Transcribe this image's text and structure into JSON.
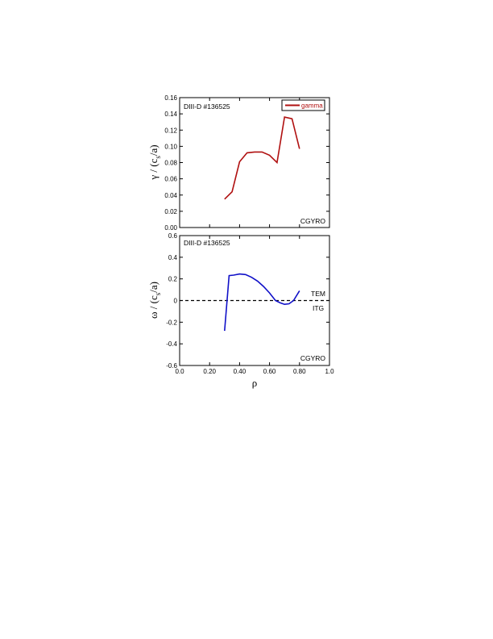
{
  "chart_data": [
    {
      "type": "line",
      "title": "",
      "xlabel": "",
      "ylabel_main": "γ / (c",
      "ylabel_sub": "s",
      "ylabel_tail": "/a)",
      "xlim": [
        0.0,
        1.0
      ],
      "ylim": [
        0.0,
        0.16
      ],
      "yticks": [
        "0.00",
        "0.02",
        "0.04",
        "0.06",
        "0.08",
        "0.10",
        "0.12",
        "0.14",
        "0.16"
      ],
      "ytick_values": [
        0.0,
        0.02,
        0.04,
        0.06,
        0.08,
        0.1,
        0.12,
        0.14,
        0.16
      ],
      "xtick_values": [
        0.0,
        0.2,
        0.4,
        0.6,
        0.8,
        1.0
      ],
      "annotations": {
        "top_left": "DIII-D #136525",
        "bottom_right": "CGYRO"
      },
      "legend": {
        "position": "top-right",
        "entries": [
          "gamma"
        ]
      },
      "series": [
        {
          "name": "gamma",
          "color": "#b01010",
          "x": [
            0.3,
            0.35,
            0.4,
            0.45,
            0.5,
            0.55,
            0.6,
            0.65,
            0.7,
            0.75,
            0.8
          ],
          "y": [
            0.035,
            0.044,
            0.081,
            0.092,
            0.093,
            0.093,
            0.089,
            0.08,
            0.136,
            0.134,
            0.097
          ]
        }
      ]
    },
    {
      "type": "line",
      "title": "",
      "xlabel": "ρ",
      "ylabel_main": "ω / (c",
      "ylabel_sub": "s",
      "ylabel_tail": "/a)",
      "xlim": [
        0.0,
        1.0
      ],
      "ylim": [
        -0.6,
        0.6
      ],
      "yticks": [
        "-0.6",
        "-0.4",
        "-0.2",
        "0",
        "0.2",
        "0.4",
        "0.6"
      ],
      "ytick_values": [
        -0.6,
        -0.4,
        -0.2,
        0.0,
        0.2,
        0.4,
        0.6
      ],
      "xticks": [
        "0.0",
        "0.20",
        "0.40",
        "0.60",
        "0.80",
        "1.0"
      ],
      "xtick_values": [
        0.0,
        0.2,
        0.4,
        0.6,
        0.8,
        1.0
      ],
      "annotations": {
        "top_left": "DIII-D #136525",
        "bottom_right": "CGYRO",
        "above_zero": "TEM",
        "below_zero": "ITG"
      },
      "reference_line": {
        "y": 0,
        "style": "dashed",
        "color": "#000000"
      },
      "series": [
        {
          "color": "#1010c8",
          "x": [
            0.3,
            0.33,
            0.36,
            0.4,
            0.44,
            0.48,
            0.52,
            0.56,
            0.6,
            0.64,
            0.67,
            0.7,
            0.73,
            0.76,
            0.8
          ],
          "y": [
            -0.28,
            0.23,
            0.235,
            0.245,
            0.24,
            0.215,
            0.18,
            0.13,
            0.07,
            0.0,
            -0.02,
            -0.035,
            -0.03,
            0.0,
            0.09
          ]
        }
      ]
    }
  ]
}
